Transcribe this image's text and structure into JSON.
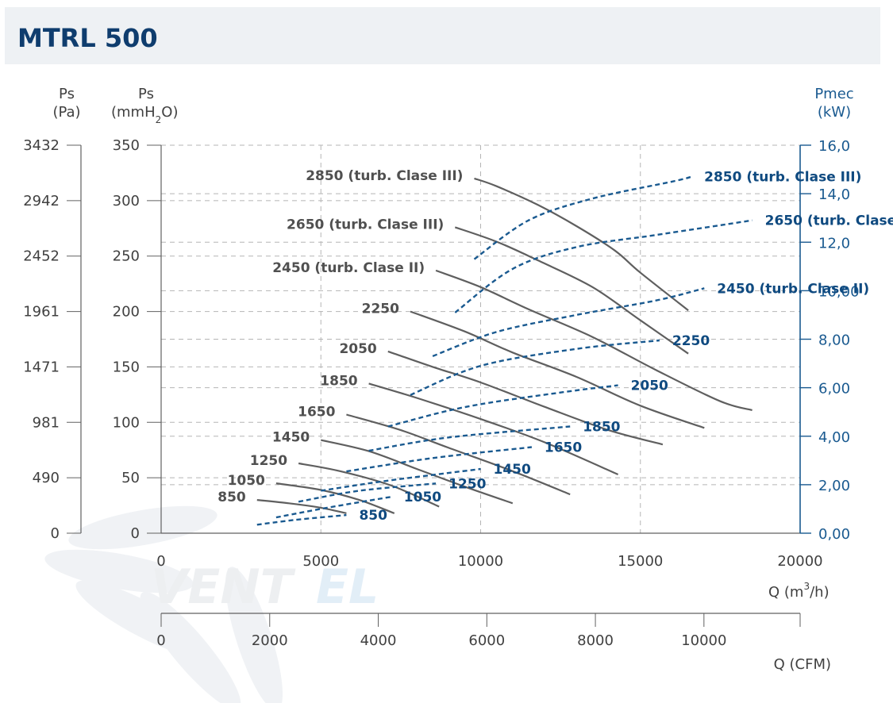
{
  "header": {
    "title": "MTRL 500"
  },
  "colors": {
    "pressure_curve": "#5f5f5f",
    "power_curve": "#1a5a90",
    "grid": "#b5b5b5",
    "power_axis": "#1a5a90",
    "header_bg": "#eef1f4"
  },
  "watermark": {
    "text": "VENTEL",
    "text_main": "VENT",
    "text_accent": "EL",
    "icon": "fan-icon"
  },
  "chart_data": {
    "type": "line",
    "grid": true,
    "axes": {
      "ps_pa": {
        "label_line1": "Ps",
        "label_line2": "(Pa)",
        "ticks": [
          "0",
          "490",
          "981",
          "1471",
          "1961",
          "2452",
          "2942",
          "3432"
        ]
      },
      "ps_mmh2o": {
        "label_line1": "Ps",
        "label_line2": "(mmH",
        "label_sub": "2",
        "label_tail": "O)",
        "ticks": [
          0,
          50,
          100,
          150,
          200,
          250,
          300,
          350
        ],
        "ylim": [
          0,
          350
        ]
      },
      "pmec_kw": {
        "label_line1": "Pmec",
        "label_line2": "(kW)",
        "ticks": [
          "0,00",
          "2,00",
          "4,00",
          "6,00",
          "8,00",
          "10,00",
          "12,0",
          "14,0",
          "16,0"
        ],
        "ylim": [
          0,
          16
        ]
      },
      "q_m3h": {
        "label_main": "Q (m",
        "label_sup": "3",
        "label_tail": "/h)",
        "ticks": [
          0,
          5000,
          10000,
          15000,
          20000
        ],
        "xlim": [
          0,
          20000
        ]
      },
      "q_cfm": {
        "label": "Q (CFM)",
        "ticks": [
          0,
          2000,
          4000,
          6000,
          8000,
          10000
        ],
        "xlim": [
          0,
          11772
        ]
      }
    },
    "pressure_series": [
      {
        "name": "850",
        "points": [
          [
            3000,
            30
          ],
          [
            4000,
            27
          ],
          [
            5000,
            23
          ],
          [
            5800,
            18
          ]
        ]
      },
      {
        "name": "1050",
        "points": [
          [
            3600,
            45
          ],
          [
            5000,
            39
          ],
          [
            6200,
            30
          ],
          [
            7300,
            18
          ]
        ]
      },
      {
        "name": "1250",
        "points": [
          [
            4300,
            63
          ],
          [
            5600,
            56
          ],
          [
            7200,
            43
          ],
          [
            8700,
            24
          ]
        ]
      },
      {
        "name": "1450",
        "points": [
          [
            5000,
            84
          ],
          [
            6500,
            74
          ],
          [
            8000,
            58
          ],
          [
            9500,
            42
          ],
          [
            11000,
            27
          ]
        ]
      },
      {
        "name": "1650",
        "points": [
          [
            5800,
            107
          ],
          [
            7500,
            93
          ],
          [
            9000,
            77
          ],
          [
            11000,
            56
          ],
          [
            12800,
            35
          ]
        ]
      },
      {
        "name": "1850",
        "points": [
          [
            6500,
            135
          ],
          [
            8000,
            122
          ],
          [
            10000,
            103
          ],
          [
            12000,
            82
          ],
          [
            14300,
            53
          ]
        ]
      },
      {
        "name": "2050",
        "points": [
          [
            7100,
            164
          ],
          [
            8500,
            150
          ],
          [
            10000,
            136
          ],
          [
            12000,
            114
          ],
          [
            14000,
            93
          ],
          [
            15700,
            80
          ]
        ]
      },
      {
        "name": "2250",
        "points": [
          [
            7800,
            200
          ],
          [
            9500,
            182
          ],
          [
            11000,
            163
          ],
          [
            13000,
            141
          ],
          [
            15000,
            115
          ],
          [
            17000,
            95
          ]
        ]
      },
      {
        "name": "2450 (turb. Clase II)",
        "points": [
          [
            8600,
            237
          ],
          [
            10000,
            222
          ],
          [
            11500,
            202
          ],
          [
            13500,
            177
          ],
          [
            15500,
            147
          ],
          [
            17500,
            119
          ],
          [
            18500,
            111
          ]
        ]
      },
      {
        "name": "2650 (turb. Clase III)",
        "points": [
          [
            9200,
            276
          ],
          [
            10500,
            263
          ],
          [
            11800,
            246
          ],
          [
            13500,
            222
          ],
          [
            15000,
            192
          ],
          [
            16500,
            162
          ]
        ]
      },
      {
        "name": "2850 (turb. Clase III)",
        "points": [
          [
            9800,
            320
          ],
          [
            10500,
            313
          ],
          [
            11800,
            296
          ],
          [
            13000,
            277
          ],
          [
            14200,
            255
          ],
          [
            15000,
            235
          ],
          [
            16500,
            201
          ]
        ]
      }
    ],
    "power_series": [
      {
        "name": "850",
        "points": [
          [
            3000,
            0.35
          ],
          [
            4200,
            0.55
          ],
          [
            5800,
            0.75
          ]
        ]
      },
      {
        "name": "1050",
        "points": [
          [
            3600,
            0.65
          ],
          [
            5200,
            1.05
          ],
          [
            7200,
            1.5
          ]
        ]
      },
      {
        "name": "1250",
        "points": [
          [
            4300,
            1.3
          ],
          [
            6200,
            1.75
          ],
          [
            8600,
            2.05
          ]
        ]
      },
      {
        "name": "1450",
        "points": [
          [
            5000,
            1.75
          ],
          [
            7000,
            2.15
          ],
          [
            10000,
            2.65
          ]
        ]
      },
      {
        "name": "1650",
        "points": [
          [
            5800,
            2.55
          ],
          [
            8500,
            3.1
          ],
          [
            11600,
            3.55
          ]
        ]
      },
      {
        "name": "1850",
        "points": [
          [
            6500,
            3.4
          ],
          [
            9000,
            3.95
          ],
          [
            12800,
            4.4
          ]
        ]
      },
      {
        "name": "2050",
        "points": [
          [
            7100,
            4.4
          ],
          [
            9500,
            5.2
          ],
          [
            12500,
            5.8
          ],
          [
            14300,
            6.1
          ]
        ]
      },
      {
        "name": "2250",
        "points": [
          [
            7800,
            5.7
          ],
          [
            10000,
            6.9
          ],
          [
            13000,
            7.6
          ],
          [
            15600,
            7.95
          ]
        ]
      },
      {
        "name": "2450 (turb. Clase II)",
        "points": [
          [
            8500,
            7.3
          ],
          [
            10500,
            8.3
          ],
          [
            13000,
            9.0
          ],
          [
            15500,
            9.6
          ],
          [
            17000,
            10.1
          ]
        ]
      },
      {
        "name": "2650 (turb. Clase III)",
        "points": [
          [
            9200,
            9.1
          ],
          [
            11000,
            10.9
          ],
          [
            13000,
            11.8
          ],
          [
            15500,
            12.3
          ],
          [
            18500,
            12.9
          ]
        ]
      },
      {
        "name": "2850 (turb. Clase III)",
        "points": [
          [
            9800,
            11.3
          ],
          [
            11500,
            12.9
          ],
          [
            13500,
            13.8
          ],
          [
            16000,
            14.5
          ],
          [
            16600,
            14.7
          ]
        ]
      }
    ]
  }
}
